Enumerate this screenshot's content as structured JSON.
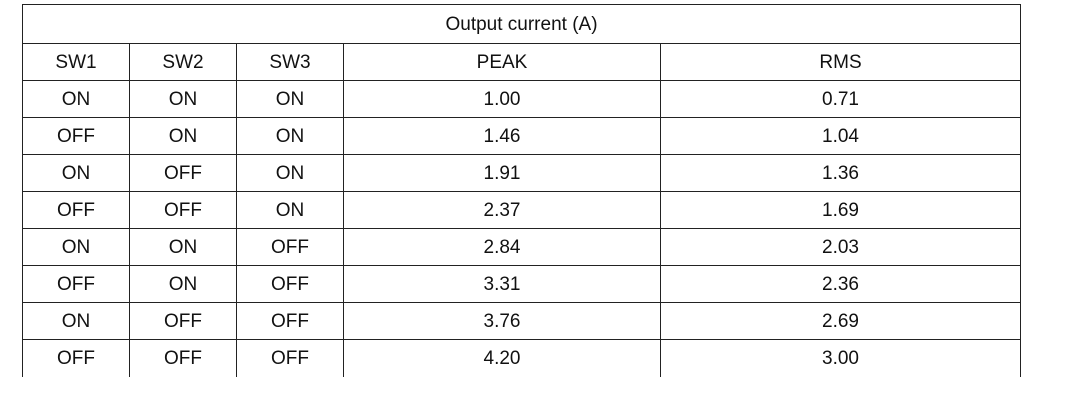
{
  "table": {
    "title": "Output current (A)",
    "headers": [
      "SW1",
      "SW2",
      "SW3",
      "PEAK",
      "RMS"
    ],
    "rows": [
      [
        "ON",
        "ON",
        "ON",
        "1.00",
        "0.71"
      ],
      [
        "OFF",
        "ON",
        "ON",
        "1.46",
        "1.04"
      ],
      [
        "ON",
        "OFF",
        "ON",
        "1.91",
        "1.36"
      ],
      [
        "OFF",
        "OFF",
        "ON",
        "2.37",
        "1.69"
      ],
      [
        "ON",
        "ON",
        "OFF",
        "2.84",
        "2.03"
      ],
      [
        "OFF",
        "ON",
        "OFF",
        "3.31",
        "2.36"
      ],
      [
        "ON",
        "OFF",
        "OFF",
        "3.76",
        "2.69"
      ],
      [
        "OFF",
        "OFF",
        "OFF",
        "4.20",
        "3.00"
      ]
    ]
  }
}
